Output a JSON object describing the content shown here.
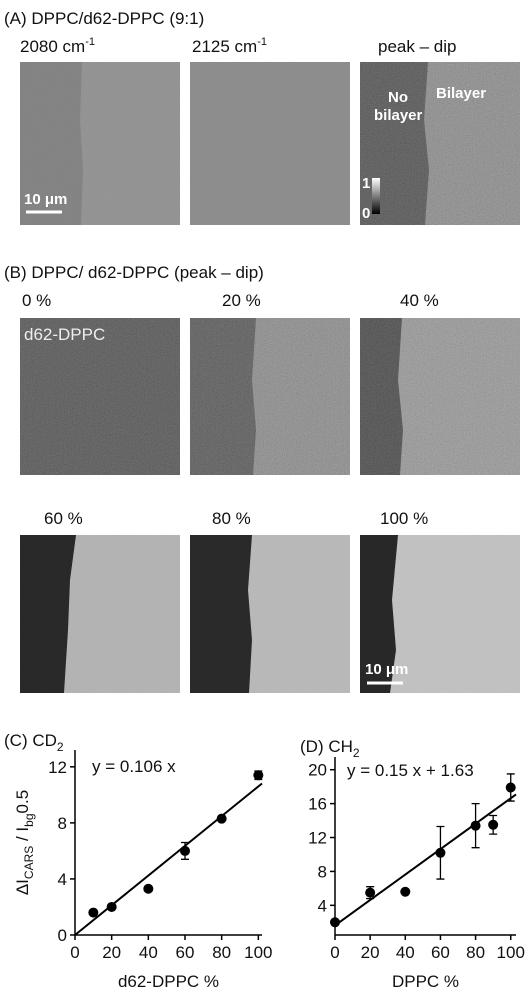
{
  "panel_a": {
    "label": "(A) DPPC/d62-DPPC (9:1)",
    "titles": [
      [
        "2080 cm",
        "-1"
      ],
      [
        "2125 cm",
        "-1"
      ],
      [
        "peak – dip"
      ]
    ],
    "scale": "10 μm",
    "no": "No",
    "no2": "bilayer",
    "bilayer": "Bilayer",
    "cb_top": "1",
    "cb_bottom": "0"
  },
  "panel_b": {
    "label": "(B) DPPC/ d62-DPPC (peak – dip)",
    "titles": [
      "0 %",
      "20 %",
      "40 %",
      "60 %",
      "80 %",
      "100 %"
    ],
    "inset": "d62-DPPC",
    "scale": "10 μm"
  },
  "chart_data": [
    {
      "type": "scatter",
      "title": [
        "(C) CD",
        "2"
      ],
      "annotation": "y = 0.106 x",
      "x_label": "d62-DPPC %",
      "y_label": [
        "ΔI",
        "CARS",
        " / I",
        "bg",
        "0.5"
      ],
      "x": [
        10,
        20,
        40,
        60,
        80,
        100
      ],
      "values": [
        1.6,
        2.0,
        3.3,
        6.0,
        8.3,
        11.4
      ],
      "errors": [
        null,
        null,
        null,
        0.6,
        null,
        0.3
      ],
      "fit": {
        "slope": 0.106,
        "intercept": 0
      },
      "xlim": [
        0,
        102
      ],
      "ylim": [
        0,
        13.2
      ],
      "xticks": [
        0,
        20,
        40,
        60,
        80,
        100
      ],
      "yticks": [
        0,
        4,
        8,
        12
      ],
      "color": "#000000"
    },
    {
      "type": "scatter",
      "title": [
        "(D) CH",
        "2"
      ],
      "annotation": "y = 0.15 x + 1.63",
      "x_label": "DPPC %",
      "x": [
        0,
        20,
        40,
        60,
        80,
        90,
        100
      ],
      "values": [
        2.0,
        5.5,
        5.6,
        10.2,
        13.4,
        13.5,
        17.9
      ],
      "errors": [
        null,
        0.7,
        null,
        3.1,
        2.6,
        1.1,
        1.6
      ],
      "fit": {
        "slope": 0.15,
        "intercept": 1.63
      },
      "xlim": [
        0,
        103
      ],
      "ylim": [
        0.5,
        21.5
      ],
      "xticks": [
        0,
        20,
        40,
        60,
        80,
        100
      ],
      "yticks": [
        4,
        8,
        12,
        16,
        20
      ],
      "color": "#000000"
    }
  ]
}
